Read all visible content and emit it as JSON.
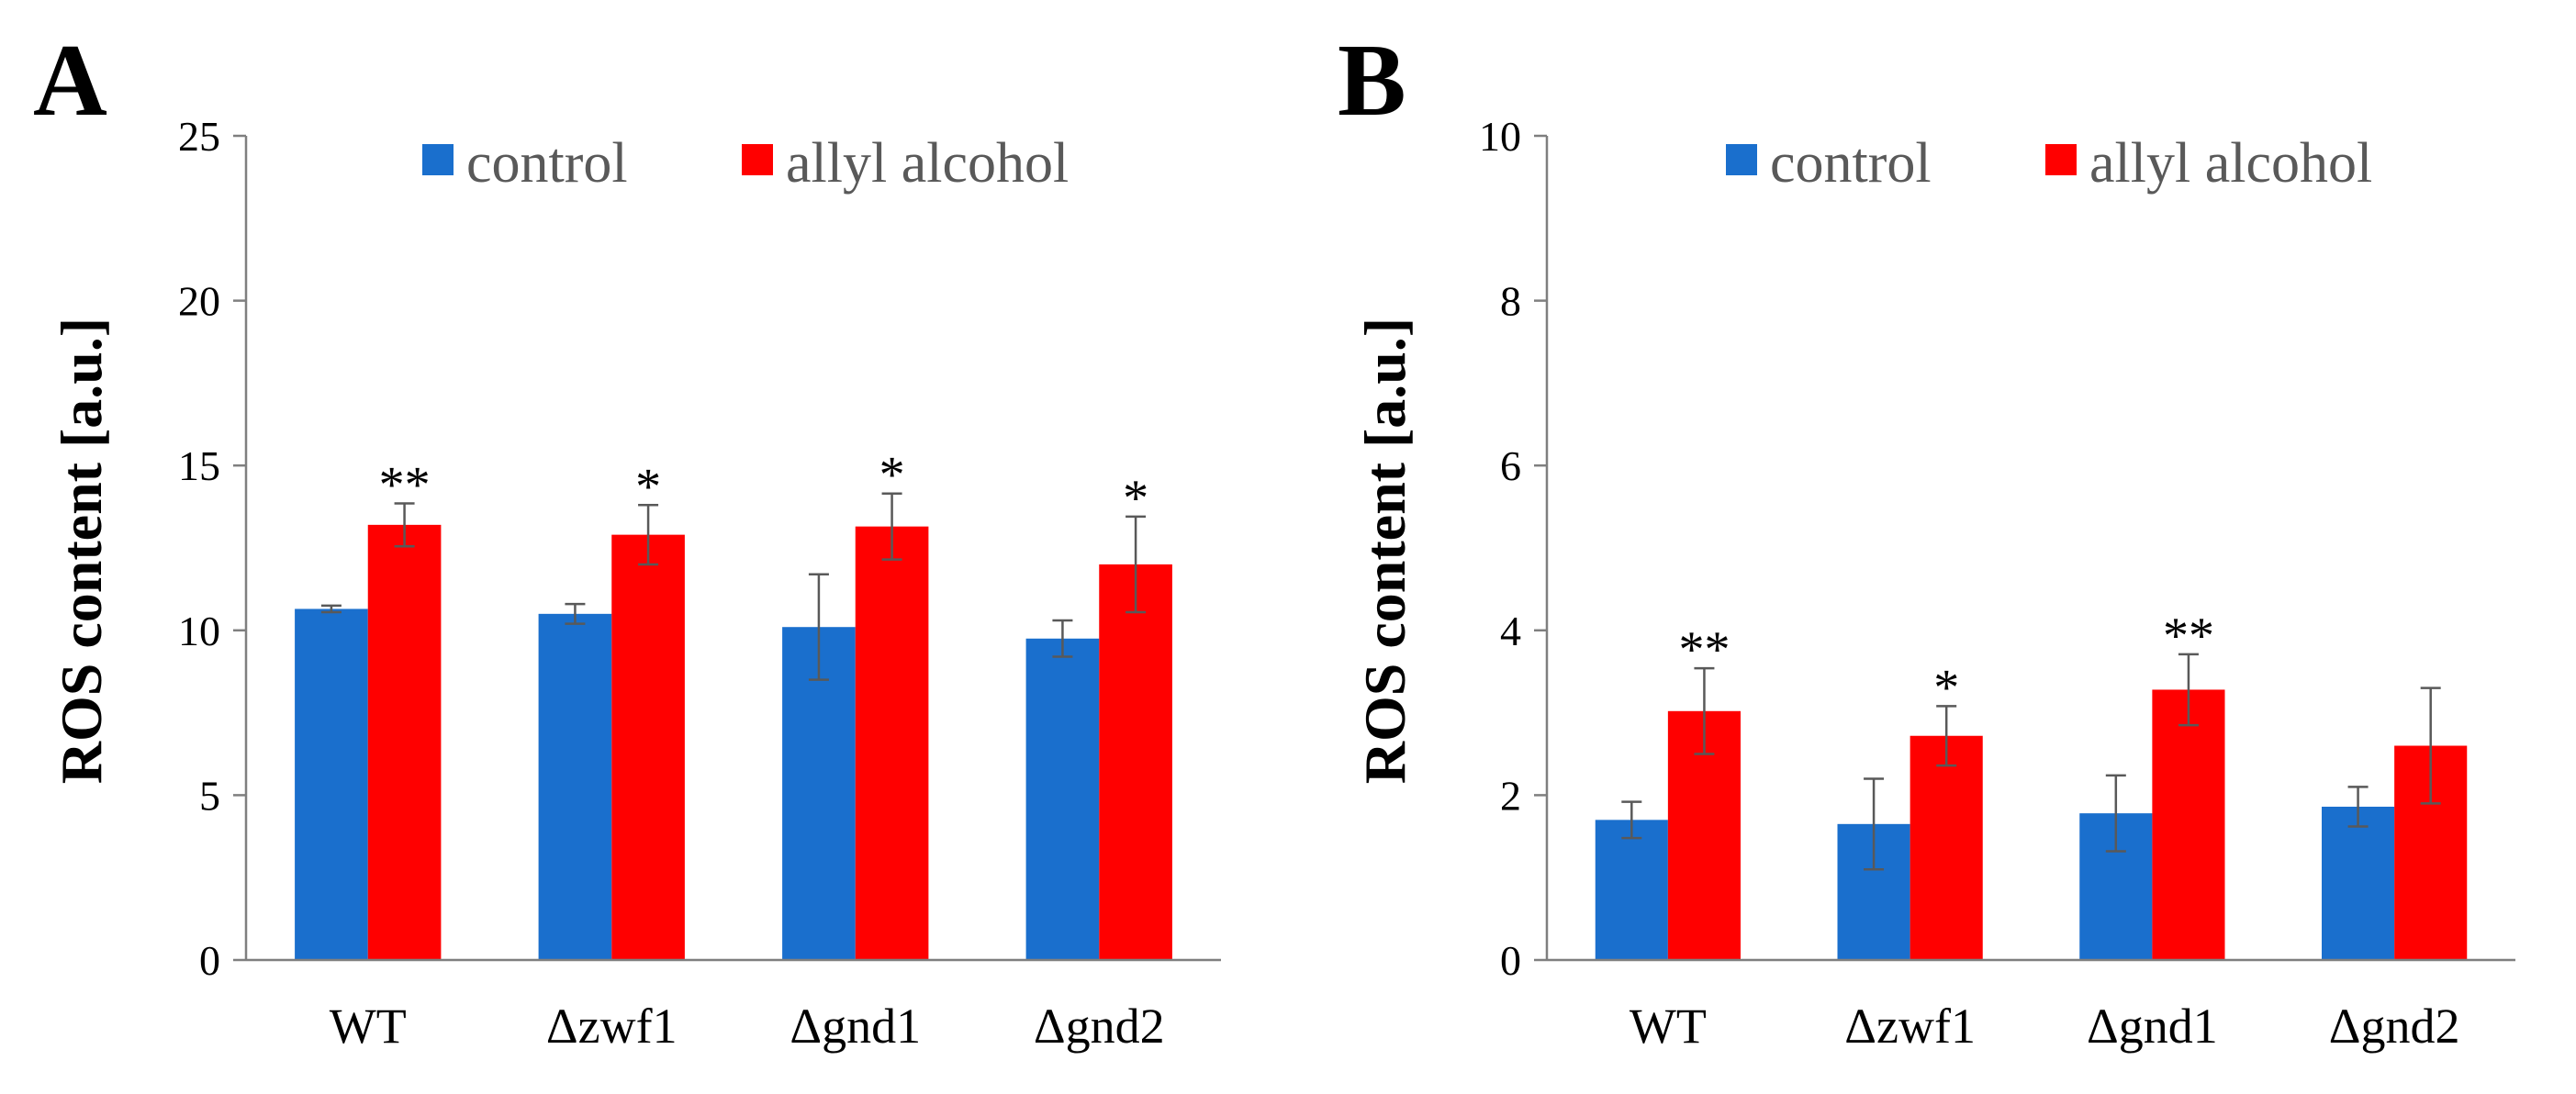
{
  "chart_data": [
    {
      "panel": "A",
      "type": "bar",
      "ylabel": "ROS content [a.u.]",
      "xlabel": "",
      "ylim": [
        0,
        25
      ],
      "yticks": [
        0,
        5,
        10,
        15,
        20,
        25
      ],
      "ytick_labels": [
        "0",
        "5",
        "10",
        "15",
        "20",
        "25"
      ],
      "grid": false,
      "legend_position": "top",
      "categories": [
        "WT",
        "Δzwf1",
        "Δgnd1",
        "Δgnd2"
      ],
      "series": [
        {
          "name": "control",
          "color": "#1a6fcd",
          "values": [
            10.65,
            10.5,
            10.1,
            9.75
          ],
          "errors": [
            0.1,
            0.3,
            1.6,
            0.55
          ],
          "significance": [
            "",
            "",
            "",
            ""
          ]
        },
        {
          "name": "allyl alcohol",
          "color": "#ff0000",
          "values": [
            13.2,
            12.9,
            13.15,
            12.0
          ],
          "errors": [
            0.65,
            0.9,
            1.0,
            1.45
          ],
          "significance": [
            "**",
            "*",
            "*",
            "*"
          ]
        }
      ]
    },
    {
      "panel": "B",
      "type": "bar",
      "ylabel": "ROS content [a.u.]",
      "xlabel": "",
      "ylim": [
        0,
        10
      ],
      "yticks": [
        0,
        2,
        4,
        6,
        8,
        10
      ],
      "ytick_labels": [
        "0",
        "2",
        "4",
        "6",
        "8",
        "10"
      ],
      "grid": false,
      "legend_position": "top",
      "categories": [
        "WT",
        "Δzwf1",
        "Δgnd1",
        "Δgnd2"
      ],
      "series": [
        {
          "name": "control",
          "color": "#1a6fcd",
          "values": [
            1.7,
            1.65,
            1.78,
            1.86
          ],
          "errors": [
            0.22,
            0.55,
            0.46,
            0.24
          ],
          "significance": [
            "",
            "",
            "",
            ""
          ]
        },
        {
          "name": "allyl alcohol",
          "color": "#ff0000",
          "values": [
            3.02,
            2.72,
            3.28,
            2.6
          ],
          "errors": [
            0.52,
            0.36,
            0.43,
            0.7
          ],
          "significance": [
            "**",
            "*",
            "**",
            ""
          ]
        }
      ]
    }
  ]
}
